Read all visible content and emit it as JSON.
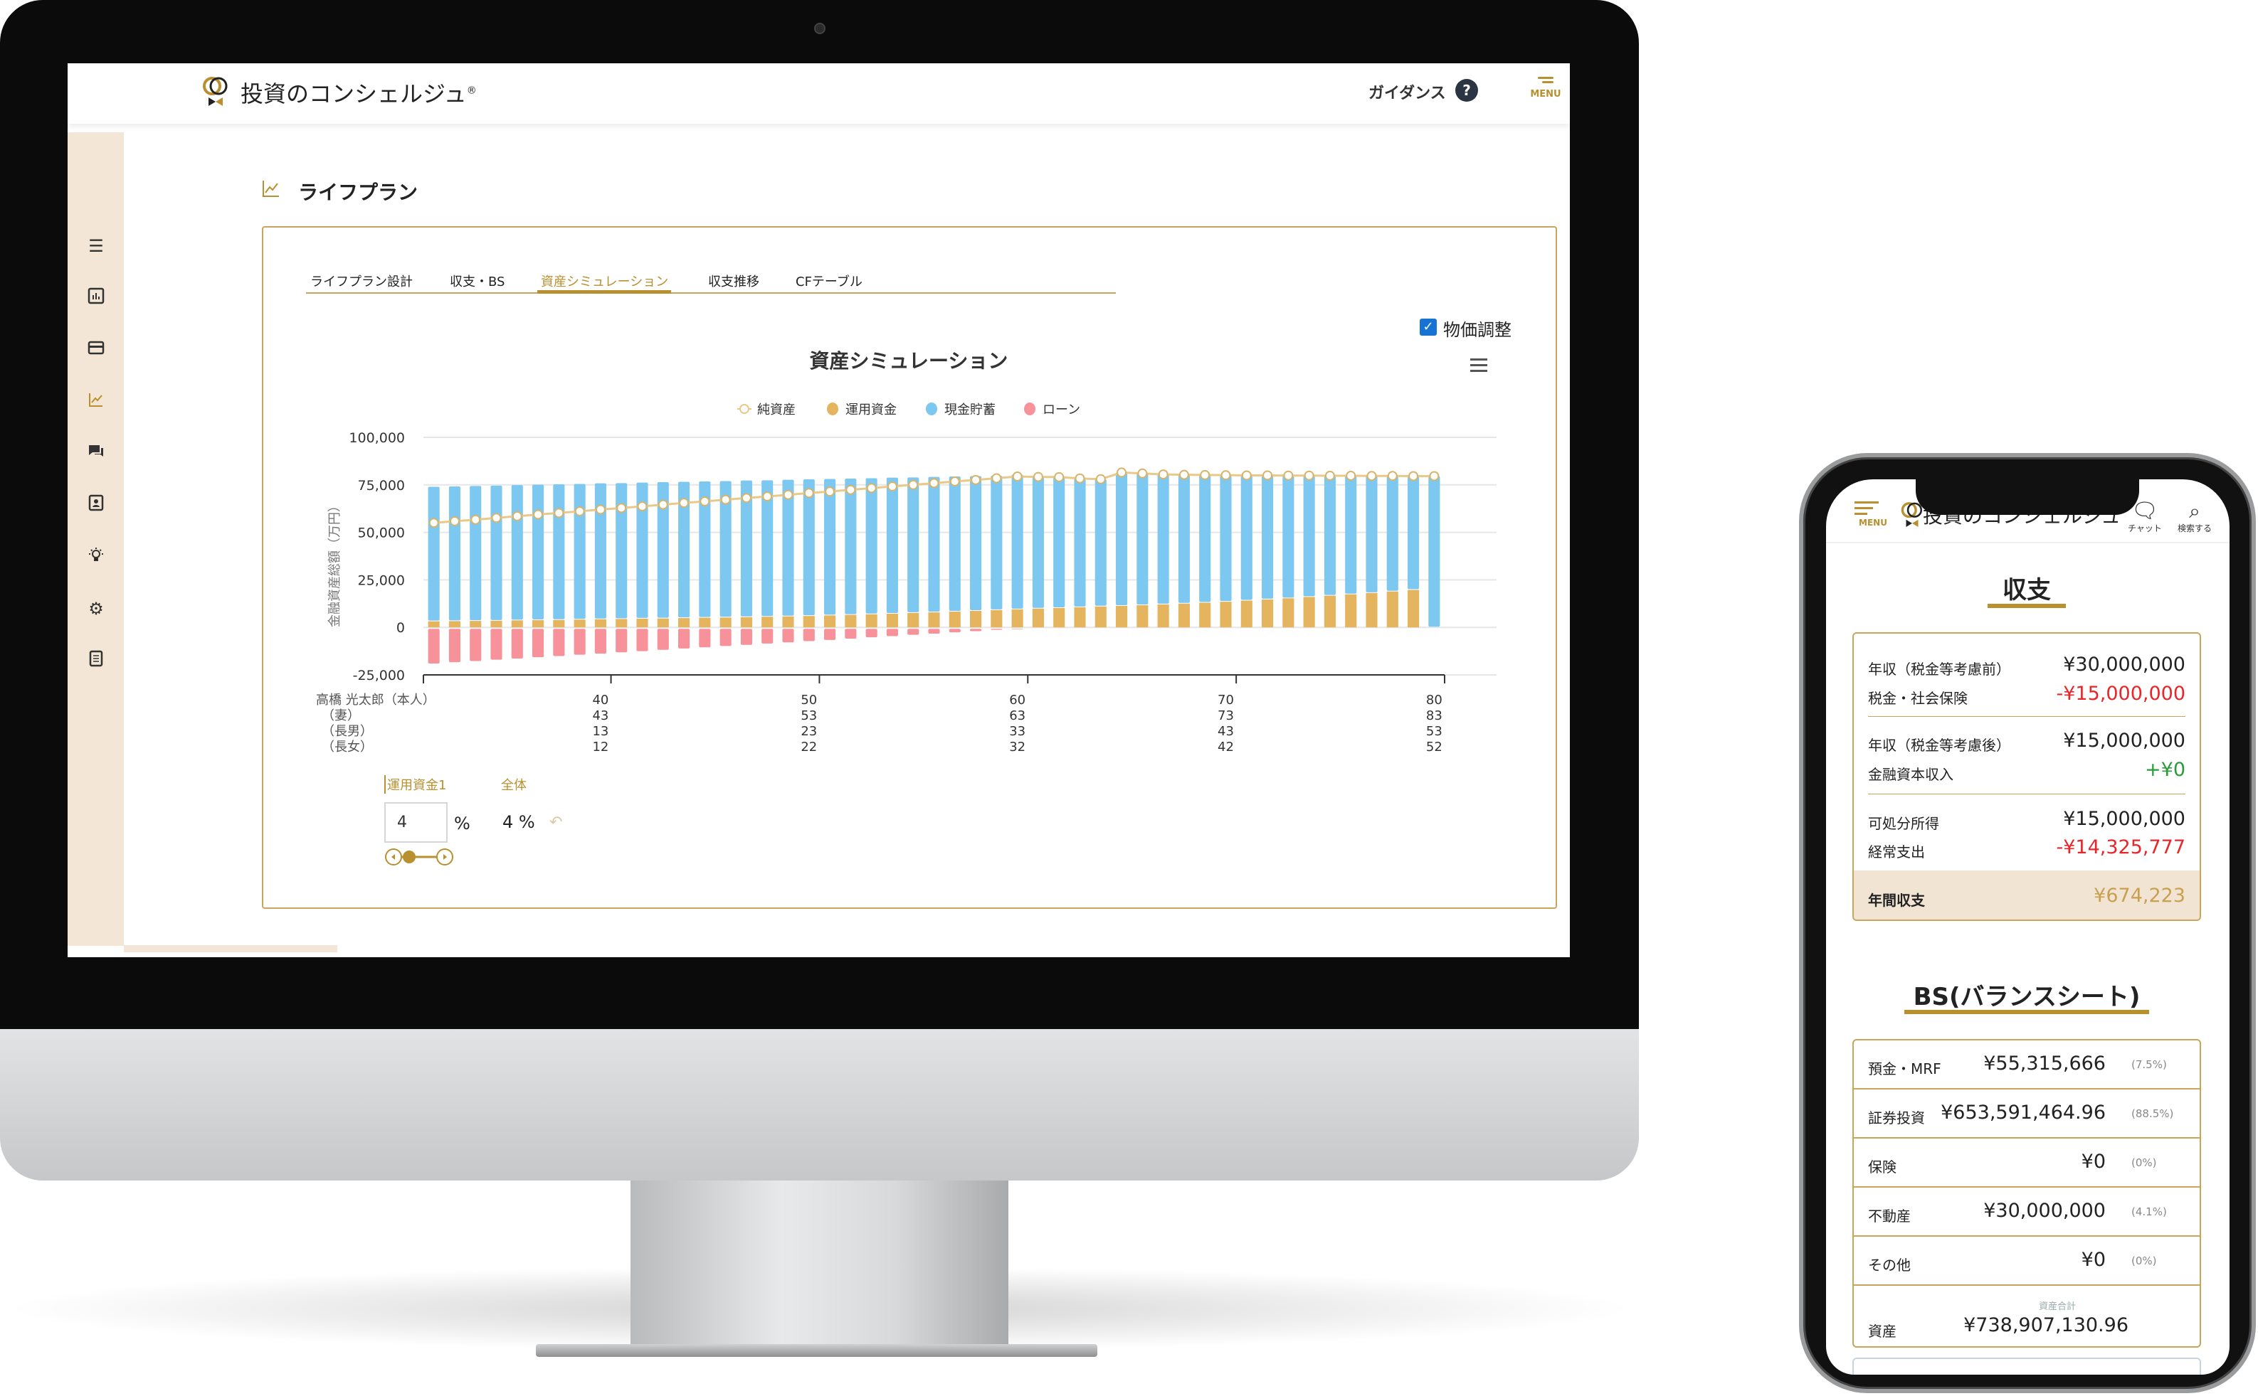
{
  "desktop": {
    "header": {
      "logo_text": "投資のコンシェルジュ",
      "registered_mark": "®",
      "guidance_label": "ガイダンス",
      "guidance_icon": "?",
      "menu_label": "MENU"
    },
    "sidebar": {
      "items": [
        {
          "icon": "hamburger-icon"
        },
        {
          "icon": "bar-chart-icon"
        },
        {
          "icon": "credit-card-icon"
        },
        {
          "icon": "line-chart-icon",
          "active": true
        },
        {
          "icon": "chat-icon"
        },
        {
          "icon": "contact-card-icon"
        },
        {
          "icon": "lightbulb-icon"
        },
        {
          "icon": "gear-icon"
        },
        {
          "icon": "document-icon"
        }
      ]
    },
    "page_title": "ライフプラン",
    "tabs": [
      {
        "label": "ライフプラン設計"
      },
      {
        "label": "収支・BS"
      },
      {
        "label": "資産シミュレーション",
        "active": true
      },
      {
        "label": "収支推移"
      },
      {
        "label": "CFテーブル"
      }
    ],
    "price_adjust": {
      "label": "物価調整",
      "checked": true
    },
    "controls": {
      "fund_label": "運用資金1",
      "total_label": "全体",
      "fund_rate_value": "4",
      "percent_sign": "%",
      "total_rate": "4 %"
    },
    "colors": {
      "accent": "#b8902f",
      "sidebar_bg": "#f3e6d6",
      "checkbox": "#1673d4"
    }
  },
  "chart_data": {
    "type": "bar",
    "stacked": true,
    "title": "資産シミュレーション",
    "ylabel": "金融資産総額（万円）",
    "ylim": [
      -25000,
      100000
    ],
    "yticks": [
      "100,000",
      "75,000",
      "50,000",
      "25,000",
      "0",
      "-25,000"
    ],
    "grid": true,
    "legend_position": "top",
    "x": [
      32,
      33,
      34,
      35,
      36,
      37,
      38,
      39,
      40,
      41,
      42,
      43,
      44,
      45,
      46,
      47,
      48,
      49,
      50,
      51,
      52,
      53,
      54,
      55,
      56,
      57,
      58,
      59,
      60,
      61,
      62,
      63,
      64,
      65,
      66,
      67,
      68,
      69,
      70,
      71,
      72,
      73,
      74,
      75,
      76,
      77,
      78,
      79,
      80
    ],
    "age_rows": [
      {
        "label": "高橋 光太郎（本人）",
        "ticks": [
          "40",
          "50",
          "60",
          "70",
          "80"
        ]
      },
      {
        "label": "（妻）",
        "ticks": [
          "43",
          "53",
          "63",
          "73",
          "83"
        ]
      },
      {
        "label": "（長男）",
        "ticks": [
          "13",
          "23",
          "33",
          "43",
          "53"
        ]
      },
      {
        "label": "（長女）",
        "ticks": [
          "12",
          "22",
          "32",
          "42",
          "52"
        ]
      }
    ],
    "series": [
      {
        "name": "純資産",
        "type": "line",
        "color": "#e8c98a",
        "values": [
          55000,
          55900,
          56700,
          57600,
          58500,
          59400,
          60200,
          61100,
          62000,
          62800,
          63700,
          64600,
          65500,
          66300,
          67200,
          68100,
          68900,
          69800,
          70700,
          71500,
          72400,
          73300,
          74200,
          75000,
          75900,
          76800,
          77600,
          78500,
          79400,
          79200,
          79100,
          78400,
          78000,
          81500,
          81000,
          80500,
          80300,
          80200,
          80100,
          80000,
          80000,
          79900,
          79900,
          79800,
          79800,
          79700,
          79700,
          79600,
          79600
        ]
      },
      {
        "name": "運用資金",
        "type": "bar",
        "color": "#e4b55e",
        "values": [
          3200,
          3300,
          3400,
          3500,
          3700,
          3800,
          3900,
          4100,
          4300,
          4400,
          4600,
          4700,
          4900,
          5100,
          5200,
          5400,
          5600,
          5800,
          6000,
          6300,
          6600,
          6900,
          7200,
          7600,
          7900,
          8300,
          8700,
          9100,
          9500,
          9900,
          10200,
          10600,
          11000,
          11300,
          11700,
          12100,
          12500,
          13000,
          13500,
          14100,
          14700,
          15300,
          16000,
          16700,
          17400,
          18100,
          18900,
          19700,
          0
        ]
      },
      {
        "name": "現金貯蓄",
        "type": "bar",
        "color": "#7dc8f0",
        "values": [
          70800,
          70900,
          71000,
          71100,
          71200,
          71300,
          71400,
          71400,
          71500,
          71500,
          71600,
          71700,
          71700,
          71700,
          71800,
          71900,
          71800,
          71900,
          71900,
          71800,
          71700,
          71600,
          71600,
          71300,
          71300,
          71100,
          70900,
          70700,
          70900,
          69600,
          68900,
          67800,
          67000,
          70200,
          69300,
          68400,
          67800,
          67200,
          66600,
          65900,
          65300,
          64600,
          63900,
          63100,
          62400,
          61600,
          60800,
          59900,
          79600
        ]
      },
      {
        "name": "ローン",
        "type": "bar",
        "color": "#f7919a",
        "values": [
          -19000,
          -18300,
          -17700,
          -17000,
          -16400,
          -15700,
          -15100,
          -14400,
          -13800,
          -13100,
          -12500,
          -11800,
          -11100,
          -10500,
          -9800,
          -9200,
          -8500,
          -7900,
          -7200,
          -6600,
          -5900,
          -5200,
          -4600,
          -3900,
          -3300,
          -2600,
          -2000,
          -1300,
          -1000,
          -300,
          0,
          0,
          0,
          0,
          0,
          0,
          0,
          0,
          0,
          0,
          0,
          0,
          0,
          0,
          0,
          0,
          0,
          0,
          0
        ]
      }
    ]
  },
  "mobile": {
    "menu_label": "MENU",
    "logo_text": "投資のコンシェルジュ",
    "chat_label": "チャット",
    "search_label": "検索する",
    "income_title": "収支",
    "income_rows": [
      {
        "label": "年収（税金等考慮前）",
        "value": "¥30,000,000",
        "tone": "normal"
      },
      {
        "label": "税金・社会保険",
        "value": "-¥15,000,000",
        "tone": "negative"
      },
      {
        "label": "年収（税金等考慮後）",
        "value": "¥15,000,000",
        "tone": "normal"
      },
      {
        "label": "金融資本収入",
        "value": "+¥0",
        "tone": "positive"
      },
      {
        "label": "可処分所得",
        "value": "¥15,000,000",
        "tone": "normal"
      },
      {
        "label": "経常支出",
        "value": "-¥14,325,777",
        "tone": "negative"
      }
    ],
    "annual_balance": {
      "label": "年間収支",
      "value": "¥674,223"
    },
    "bs_title": "BS(バランスシート)",
    "bs_rows": [
      {
        "label": "預金・MRF",
        "value": "¥55,315,666",
        "pct": "(7.5%)"
      },
      {
        "label": "証券投資",
        "value": "¥653,591,464.96",
        "pct": "(88.5%)"
      },
      {
        "label": "保険",
        "value": "¥0",
        "pct": "(0%)"
      },
      {
        "label": "不動産",
        "value": "¥30,000,000",
        "pct": "(4.1%)"
      },
      {
        "label": "その他",
        "value": "¥0",
        "pct": "(0%)"
      }
    ],
    "asset_total": {
      "label": "資産",
      "caption": "資産合計",
      "value": "¥738,907,130.96"
    },
    "colors": {
      "negative": "#e8262a",
      "positive": "#2a9a3a",
      "total": "#c8a050",
      "band": "#f1e4d3"
    }
  }
}
